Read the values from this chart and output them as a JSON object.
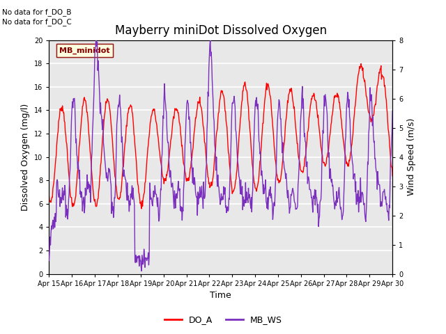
{
  "title": "Mayberry miniDot Dissolved Oxygen",
  "ylabel_left": "Dissolved Oxygen (mg/l)",
  "ylabel_right": "Wind Speed (m/s)",
  "xlabel": "Time",
  "ylim_left": [
    0,
    20
  ],
  "ylim_right": [
    0,
    8.0
  ],
  "xlim": [
    0,
    360
  ],
  "xtick_positions": [
    0,
    24,
    48,
    72,
    96,
    120,
    144,
    168,
    192,
    216,
    240,
    264,
    288,
    312,
    336,
    360
  ],
  "xtick_labels": [
    "Apr 15",
    "Apr 16",
    "Apr 17",
    "Apr 18",
    "Apr 19",
    "Apr 20",
    "Apr 21",
    "Apr 22",
    "Apr 23",
    "Apr 24",
    "Apr 25",
    "Apr 26",
    "Apr 27",
    "Apr 28",
    "Apr 29",
    "Apr 30"
  ],
  "color_DO": "#ff0000",
  "color_WS": "#7b2fbe",
  "legend_label_DO": "DO_A",
  "legend_label_WS": "MB_WS",
  "legend_box_label": "MB_minidot",
  "no_data_text1": "No data for f_DO_B",
  "no_data_text2": "No data for f_DO_C",
  "bg_color": "#e8e8e8",
  "grid_color": "#ffffff",
  "legend_box_color": "#ffffe0",
  "legend_box_edge": "#8b0000",
  "title_fontsize": 12,
  "axis_fontsize": 9,
  "tick_fontsize": 7
}
